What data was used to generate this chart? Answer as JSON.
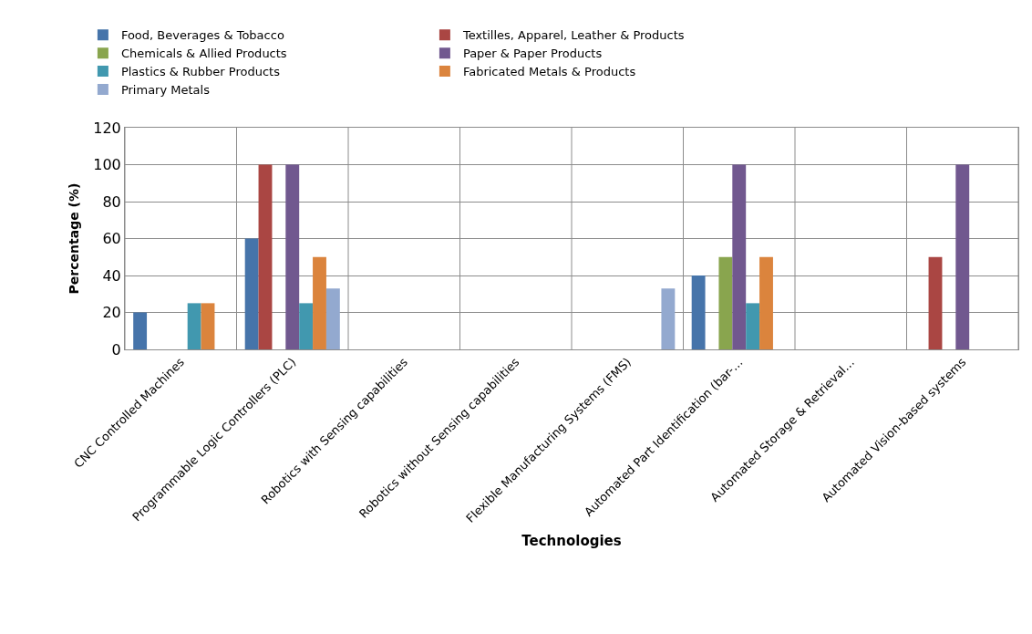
{
  "chart_data": {
    "type": "bar",
    "xlabel": "Technologies",
    "ylabel": "Percentage (%)",
    "categories": [
      "CNC Controlled Machines",
      "Programmable Logic Controllers (PLC)",
      "Robotics with Sensing capabilities",
      "Robotics without Sensing capabilities",
      "Flexible Manufacturing Systems (FMS)",
      "Automated Part Identification (bar-…",
      "Automated Storage & Retrieval…",
      "Automated Vision-based systems"
    ],
    "series": [
      {
        "name": "Food, Beverages & Tobacco",
        "color": "#4674aa",
        "values": [
          20,
          60,
          0,
          0,
          0,
          40,
          0,
          0
        ]
      },
      {
        "name": "Textilles, Apparel, Leather & Products",
        "color": "#aa4643",
        "values": [
          0,
          100,
          0,
          0,
          0,
          0,
          0,
          50
        ]
      },
      {
        "name": "Chemicals & Allied Products",
        "color": "#89a54e",
        "values": [
          0,
          0,
          0,
          0,
          0,
          50,
          0,
          0
        ]
      },
      {
        "name": "Paper & Paper Products",
        "color": "#71588f",
        "values": [
          0,
          100,
          0,
          0,
          0,
          100,
          0,
          100
        ]
      },
      {
        "name": "Plastics & Rubber Products",
        "color": "#4198af",
        "values": [
          25,
          25,
          0,
          0,
          0,
          25,
          0,
          0
        ]
      },
      {
        "name": "Fabricated Metals & Products",
        "color": "#db843d",
        "values": [
          25,
          50,
          0,
          0,
          0,
          50,
          0,
          0
        ]
      },
      {
        "name": "Primary Metals",
        "color": "#93a9cf",
        "values": [
          0,
          33,
          0,
          0,
          33,
          0,
          0,
          0
        ]
      }
    ],
    "ylim": [
      0,
      120
    ],
    "yticks": [
      0,
      20,
      40,
      60,
      80,
      100,
      120
    ],
    "grid": true,
    "legend": "top"
  }
}
